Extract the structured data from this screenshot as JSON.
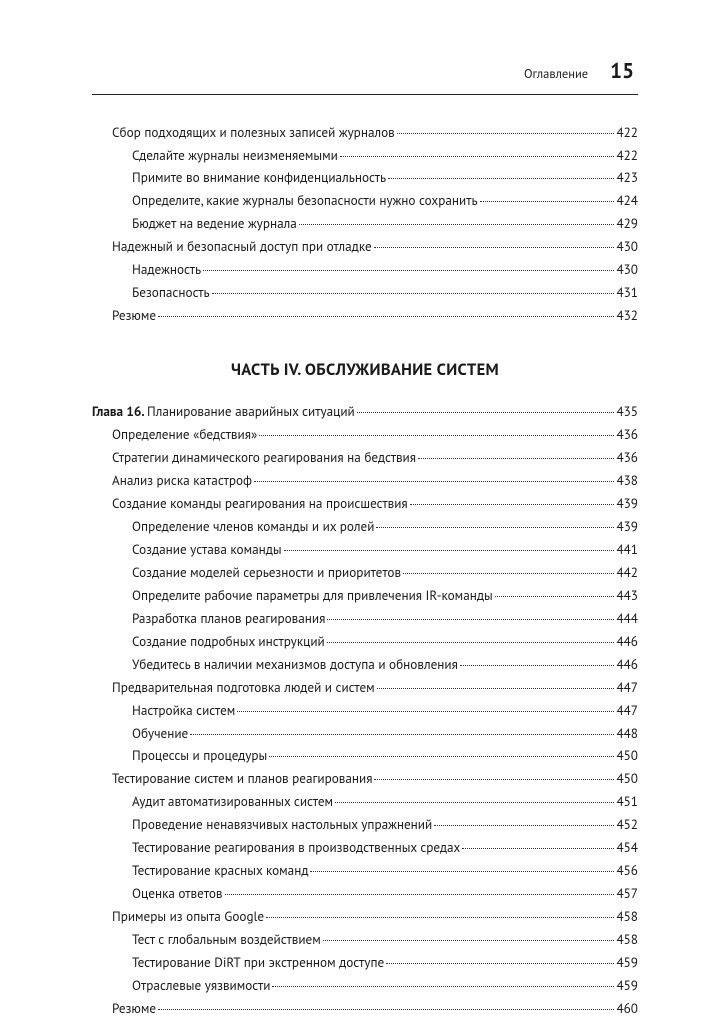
{
  "header": {
    "label": "Оглавление",
    "page_number": "15"
  },
  "colors": {
    "text": "#1a1a1a",
    "background": "#ffffff",
    "rule": "#222222",
    "dots": "#333333"
  },
  "typography": {
    "body_fontsize_pt": 10,
    "page_number_fontsize_pt": 16,
    "part_title_fontsize_pt": 12.5,
    "font_family": "PT Sans / Myriad-like sans-serif"
  },
  "section_a": [
    {
      "level": 1,
      "title": "Сбор подходящих и полезных записей журналов",
      "page": "422"
    },
    {
      "level": 2,
      "title": "Сделайте журналы неизменяемыми",
      "page": "422"
    },
    {
      "level": 2,
      "title": "Примите во внимание конфиденциальность",
      "page": "423"
    },
    {
      "level": 2,
      "title": "Определите, какие журналы безопасности нужно сохранить",
      "page": "424"
    },
    {
      "level": 2,
      "title": "Бюджет на ведение журнала",
      "page": "429"
    },
    {
      "level": 1,
      "title": "Надежный и безопасный доступ при отладке",
      "page": "430"
    },
    {
      "level": 2,
      "title": "Надежность",
      "page": "430"
    },
    {
      "level": 2,
      "title": "Безопасность",
      "page": "431"
    },
    {
      "level": 1,
      "title": "Резюме",
      "page": "432"
    }
  ],
  "part_title": "ЧАСТЬ IV. ОБСЛУЖИВАНИЕ СИСТЕМ",
  "section_b": [
    {
      "level": 0,
      "prefix": "Глава 16. ",
      "title": "Планирование аварийных ситуаций",
      "page": "435"
    },
    {
      "level": 1,
      "title": "Определение «бедствия»",
      "page": "436"
    },
    {
      "level": 1,
      "title": "Стратегии динамического реагирования на бедствия",
      "page": "436"
    },
    {
      "level": 1,
      "title": "Анализ риска катастроф",
      "page": "438"
    },
    {
      "level": 1,
      "title": "Создание команды реагирования на происшествия",
      "page": "439"
    },
    {
      "level": 2,
      "title": "Определение членов команды и их ролей",
      "page": "439"
    },
    {
      "level": 2,
      "title": "Создание устава команды",
      "page": "441"
    },
    {
      "level": 2,
      "title": "Создание моделей серьезности и приоритетов",
      "page": "442"
    },
    {
      "level": 2,
      "title": "Определите рабочие параметры для привлечения IR-команды",
      "page": "443"
    },
    {
      "level": 2,
      "title": "Разработка планов реагирования",
      "page": "444"
    },
    {
      "level": 2,
      "title": "Создание подробных инструкций",
      "page": "446"
    },
    {
      "level": 2,
      "title": "Убедитесь в наличии механизмов доступа и обновления",
      "page": "446"
    },
    {
      "level": 1,
      "title": "Предварительная подготовка людей и систем",
      "page": "447"
    },
    {
      "level": 2,
      "title": "Настройка систем",
      "page": "447"
    },
    {
      "level": 2,
      "title": "Обучение",
      "page": "448"
    },
    {
      "level": 2,
      "title": "Процессы и процедуры",
      "page": "450"
    },
    {
      "level": 1,
      "title": "Тестирование систем и планов реагирования",
      "page": "450"
    },
    {
      "level": 2,
      "title": "Аудит автоматизированных систем",
      "page": "451"
    },
    {
      "level": 2,
      "title": "Проведение ненавязчивых настольных упражнений",
      "page": "452"
    },
    {
      "level": 2,
      "title": "Тестирование реагирования в производственных средах",
      "page": "454"
    },
    {
      "level": 2,
      "title": "Тестирование красных команд",
      "page": "456"
    },
    {
      "level": 2,
      "title": "Оценка ответов",
      "page": "457"
    },
    {
      "level": 1,
      "title": "Примеры из опыта Google",
      "page": "458"
    },
    {
      "level": 2,
      "title": "Тест с глобальным воздействием",
      "page": "458"
    },
    {
      "level": 2,
      "title": "Тестирование DiRT при экстренном доступе",
      "page": "459"
    },
    {
      "level": 2,
      "title": "Отраслевые уязвимости",
      "page": "459"
    },
    {
      "level": 1,
      "title": "Резюме",
      "page": "460"
    }
  ]
}
